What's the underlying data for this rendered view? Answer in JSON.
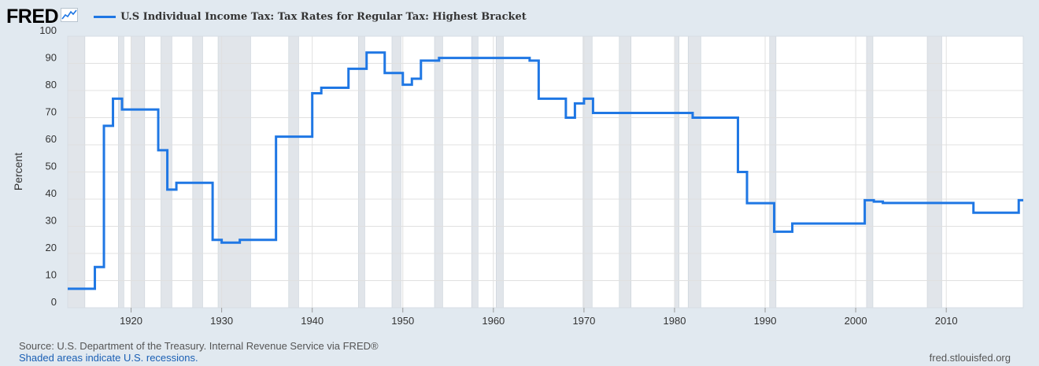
{
  "header": {
    "logo": "FRED",
    "logo_icon": "chart-line-icon",
    "series_title": "U.S Individual Income Tax: Tax Rates for Regular Tax: Highest Bracket"
  },
  "footer": {
    "source": "Source: U.S. Department of the Treasury. Internal Revenue Service via FRED®",
    "recession_note": "Shaded areas indicate U.S. recessions.",
    "site": "fred.stlouisfed.org"
  },
  "colors": {
    "background": "#e1e9f0",
    "plot_background": "#ffffff",
    "line": "#1f77e4",
    "recession_shade": "#e1e5ea",
    "grid": "#e0e0e0"
  },
  "chart_data": {
    "type": "line",
    "ylabel": "Percent",
    "xlim": [
      1913,
      2018.5
    ],
    "ylim": [
      0,
      100
    ],
    "x_ticks": [
      1920,
      1930,
      1940,
      1950,
      1960,
      1970,
      1980,
      1990,
      2000,
      2010
    ],
    "y_ticks": [
      0,
      10,
      20,
      30,
      40,
      50,
      60,
      70,
      80,
      90,
      100
    ],
    "grid": true,
    "step": true,
    "series": [
      {
        "name": "U.S Individual Income Tax: Tax Rates for Regular Tax: Highest Bracket",
        "x": [
          1913,
          1916,
          1917,
          1918,
          1919,
          1922,
          1923,
          1924,
          1925,
          1929,
          1930,
          1932,
          1936,
          1940,
          1941,
          1942,
          1944,
          1946,
          1948,
          1950,
          1951,
          1952,
          1954,
          1964,
          1965,
          1968,
          1969,
          1970,
          1971,
          1982,
          1987,
          1988,
          1991,
          1993,
          2001,
          2002,
          2003,
          2013,
          2018
        ],
        "y": [
          7,
          15,
          67,
          77,
          73,
          73,
          58,
          43.5,
          46,
          25,
          24,
          25,
          63,
          79,
          81,
          81,
          88,
          94,
          86.45,
          82.13,
          84.36,
          91,
          92,
          91,
          77,
          70,
          75.25,
          77,
          71.75,
          70,
          50,
          38.5,
          28,
          31,
          39.6,
          39.1,
          38.6,
          35,
          39.6
        ]
      }
    ],
    "recessions": [
      [
        1913.0,
        1914.9
      ],
      [
        1918.6,
        1919.2
      ],
      [
        1920.0,
        1921.5
      ],
      [
        1923.3,
        1924.5
      ],
      [
        1926.8,
        1927.9
      ],
      [
        1929.6,
        1933.2
      ],
      [
        1937.4,
        1938.5
      ],
      [
        1945.1,
        1945.8
      ],
      [
        1948.8,
        1949.8
      ],
      [
        1953.5,
        1954.4
      ],
      [
        1957.6,
        1958.3
      ],
      [
        1960.3,
        1961.1
      ],
      [
        1969.9,
        1970.9
      ],
      [
        1973.9,
        1975.2
      ],
      [
        1980.0,
        1980.5
      ],
      [
        1981.5,
        1982.9
      ],
      [
        1990.5,
        1991.2
      ],
      [
        2001.2,
        2001.9
      ],
      [
        2007.9,
        2009.5
      ]
    ]
  }
}
